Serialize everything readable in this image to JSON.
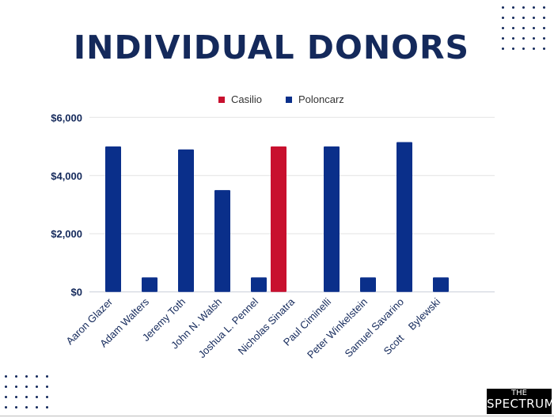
{
  "chart_data": {
    "type": "bar",
    "title": "INDIVIDUAL DONORS",
    "categories": [
      "Aaron Glazer",
      "Adam Walters",
      "Jeremy Toth",
      "John N. Walsh",
      "Joshua L. Pennel",
      "Nicholas Sinatra",
      "Paul Ciminelli",
      "Peter Winkelstein",
      "Samuel Savarino",
      "Scott    Bylewski"
    ],
    "series": [
      {
        "name": "Casilio",
        "color": "#c8102e",
        "values": [
          0,
          0,
          0,
          0,
          0,
          5000,
          0,
          0,
          0,
          0
        ]
      },
      {
        "name": "Poloncarz",
        "color": "#0a2f8a",
        "values": [
          5000,
          500,
          4900,
          3500,
          500,
          0,
          5000,
          500,
          5150,
          500
        ]
      }
    ],
    "xlabel": "",
    "ylabel": "",
    "ylim": [
      0,
      6000
    ],
    "yticks": [
      0,
      2000,
      4000,
      6000
    ],
    "ytick_labels": [
      "$0",
      "$2,000",
      "$4,000",
      "$6,000"
    ],
    "grid": true,
    "legend_position": "top-center"
  },
  "logo": {
    "line1": "THE",
    "line2": "SPECTRUM"
  }
}
